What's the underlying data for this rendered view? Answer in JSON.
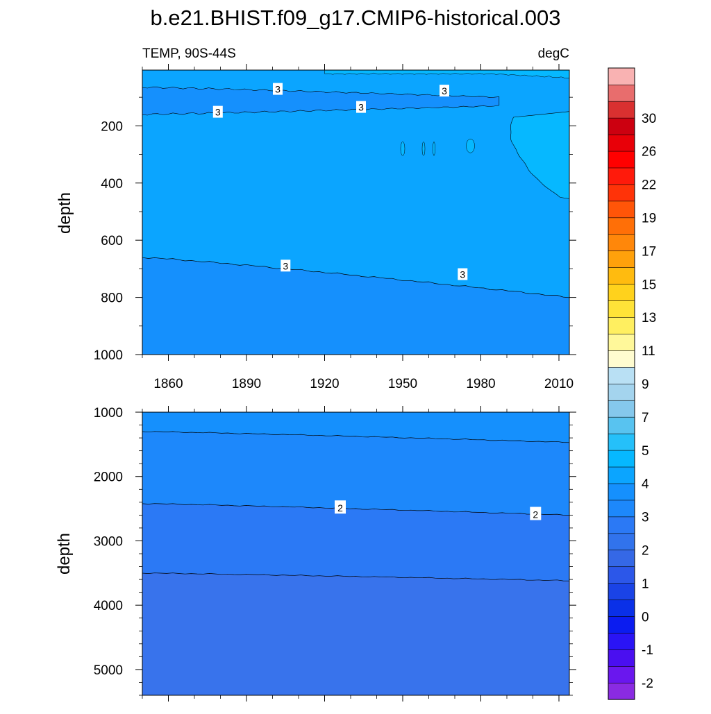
{
  "chart_data": [
    {
      "type": "contour",
      "panel": "upper",
      "title": "b.e21.BHIST.f09_g17.CMIP6-historical.003",
      "left_subtitle": "TEMP, 90S-44S",
      "right_subtitle": "degC",
      "xlabel": "",
      "ylabel": "depth",
      "xlim": [
        1850,
        2014
      ],
      "ylim": [
        1000,
        5
      ],
      "xticks": [
        1860,
        1890,
        1920,
        1950,
        1980,
        2010
      ],
      "xtick_labels": [
        "1860",
        "1890",
        "1920",
        "1950",
        "1980",
        "2010"
      ],
      "yticks": [
        200,
        400,
        600,
        800,
        1000
      ],
      "ytick_labels": [
        "200",
        "400",
        "600",
        "800",
        "1000"
      ],
      "fill_regions": [
        {
          "level_range": "3 to 3.5",
          "color": "#0ba5ff",
          "note": "background of upper panel"
        },
        {
          "level_range": "2.5 to 3",
          "color": "#1590fd",
          "note": "subsurface band ~70-165 m and water below ~660-800 m"
        },
        {
          "level_range": "3.5 to 4",
          "color": "#06b8ff",
          "note": "warm lens 1990-2014 at ~170-450 m and near-surface patches"
        }
      ],
      "contours": [
        {
          "label": "3",
          "depth_start": 660,
          "depth_end": 800,
          "x_range": [
            1850,
            2014
          ]
        },
        {
          "label": "3",
          "depth_start": 65,
          "depth_end": 100,
          "x_range": [
            1850,
            1987
          ]
        },
        {
          "label": "3",
          "depth_start": 160,
          "depth_end": 130,
          "x_range": [
            1850,
            1987
          ]
        }
      ],
      "contour_labels": [
        {
          "text": "3",
          "x": 1902,
          "depth": 72
        },
        {
          "text": "3",
          "x": 1966,
          "depth": 78
        },
        {
          "text": "3",
          "x": 1879,
          "depth": 152
        },
        {
          "text": "3",
          "x": 1934,
          "depth": 135
        },
        {
          "text": "3",
          "x": 1905,
          "depth": 690
        },
        {
          "text": "3",
          "x": 1973,
          "depth": 720
        }
      ]
    },
    {
      "type": "contour",
      "panel": "lower",
      "xlabel": "",
      "ylabel": "depth",
      "xlim": [
        1850,
        2014
      ],
      "ylim": [
        5400,
        1000
      ],
      "yticks": [
        1000,
        2000,
        3000,
        4000,
        5000
      ],
      "ytick_labels": [
        "1000",
        "2000",
        "3000",
        "4000",
        "5000"
      ],
      "fill_regions": [
        {
          "level_range": "2.5 to 3",
          "color": "#1590fd",
          "note": "top layer down to ~1300-1470 m"
        },
        {
          "level_range": "1.5 to 2",
          "color": "#1d88fb",
          "note": "down to ~2420-2600 m"
        },
        {
          "level_range": "1 to 1.5",
          "color": "#2b79f5",
          "note": "down to ~3500-3620 m"
        },
        {
          "level_range": "0.5 to 1",
          "color": "#3873ec",
          "note": "bottom layer to 5400 m"
        }
      ],
      "contours": [
        {
          "label": "",
          "depth_start": 1300,
          "depth_end": 1470
        },
        {
          "label": "2",
          "depth_start": 2420,
          "depth_end": 2600
        },
        {
          "label": "",
          "depth_start": 3500,
          "depth_end": 3620
        }
      ],
      "contour_labels": [
        {
          "text": "2",
          "x": 1926,
          "depth": 2480
        },
        {
          "text": "2",
          "x": 2001,
          "depth": 2580
        }
      ]
    },
    {
      "type": "colorbar",
      "orientation": "vertical",
      "range": [
        -3,
        33
      ],
      "interval": 1,
      "labels": [
        "-2",
        "-1",
        "0",
        "1",
        "2",
        "3",
        "4",
        "5",
        "7",
        "9",
        "11",
        "13",
        "15",
        "17",
        "19",
        "22",
        "26",
        "30"
      ],
      "colors": [
        "#8a2be2",
        "#6a17ee",
        "#4a0ff0",
        "#2a14f5",
        "#0b1cf0",
        "#0a30e8",
        "#1a43e6",
        "#2c57e9",
        "#3568e6",
        "#3173ec",
        "#2b79f5",
        "#1d88fb",
        "#1590fd",
        "#0ba5ff",
        "#06b8ff",
        "#25c0fa",
        "#58c3f0",
        "#85c8ec",
        "#a4d4ee",
        "#b9e0f4",
        "#fffcd0",
        "#fff89a",
        "#ffef60",
        "#ffe338",
        "#ffd21c",
        "#ffbb0f",
        "#ffa10b",
        "#ff870a",
        "#ff6f07",
        "#ff5508",
        "#ff3308",
        "#ff1a0b",
        "#ff0000",
        "#e80008",
        "#cc0010",
        "#d93030",
        "#e86d6d",
        "#f9b2b2"
      ]
    }
  ]
}
